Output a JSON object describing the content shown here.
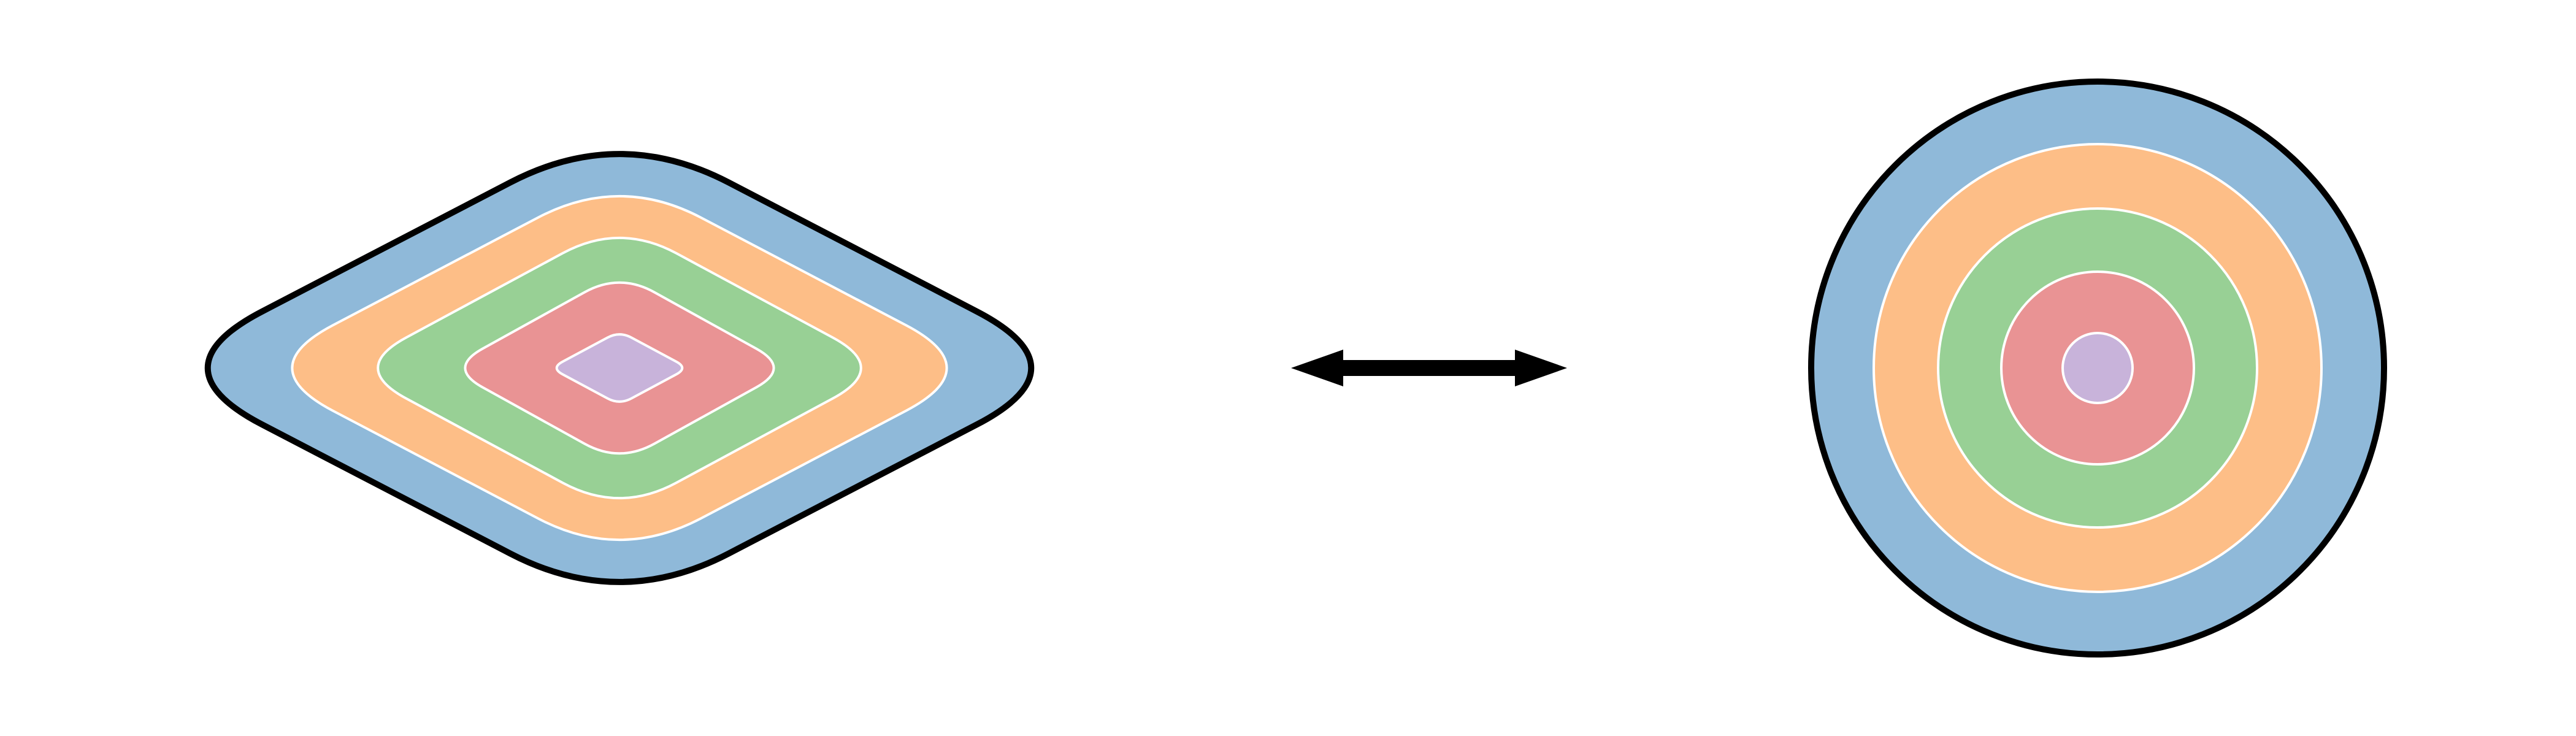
{
  "diagram": {
    "layer_colors": [
      "#8fb9d9",
      "#fdbe87",
      "#98d095",
      "#e99394",
      "#c8b3da"
    ],
    "layer_stroke": "#ffffff",
    "outline_color": "#000000",
    "arrow_color": "#000000",
    "background": "#ffffff",
    "left_shape": "rounded-diamond",
    "right_shape": "circle",
    "connector": "double-headed-arrow"
  }
}
